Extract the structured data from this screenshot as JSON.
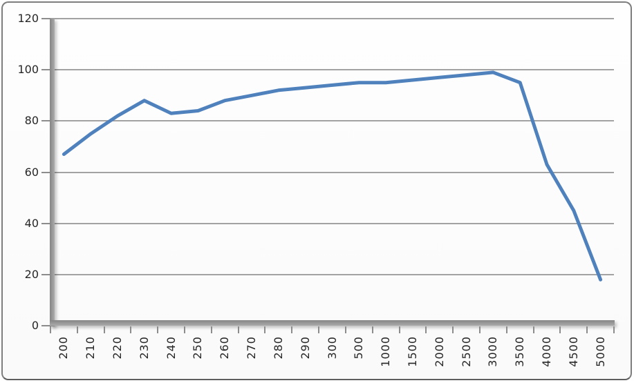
{
  "chart_data": {
    "type": "line",
    "title": "",
    "xlabel": "",
    "ylabel": "",
    "categories": [
      "200",
      "210",
      "220",
      "230",
      "240",
      "250",
      "260",
      "270",
      "280",
      "290",
      "300",
      "500",
      "1000",
      "1500",
      "2000",
      "2500",
      "3000",
      "3500",
      "4000",
      "4500",
      "5000"
    ],
    "series": [
      {
        "values": [
          67,
          75,
          82,
          88,
          83,
          84,
          88,
          90,
          92,
          93,
          94,
          95,
          95,
          96,
          97,
          98,
          99,
          95,
          63,
          45,
          18
        ]
      }
    ],
    "ylim": [
      0,
      120
    ],
    "y_ticks": [
      0,
      20,
      40,
      60,
      80,
      100,
      120
    ],
    "grid": true,
    "legend": false,
    "x_tick_rotation_deg": 90
  },
  "style": {
    "line_color": "#4f81bd",
    "frame_border_color": "#7d7d7d",
    "background": "#fdfdfd",
    "gridline_color": "#a2a2a2",
    "axis_bar_dark": "#858585",
    "axis_bar_light": "#ababab",
    "tick_color": "#8c8c8c",
    "label_color": "#262626"
  }
}
